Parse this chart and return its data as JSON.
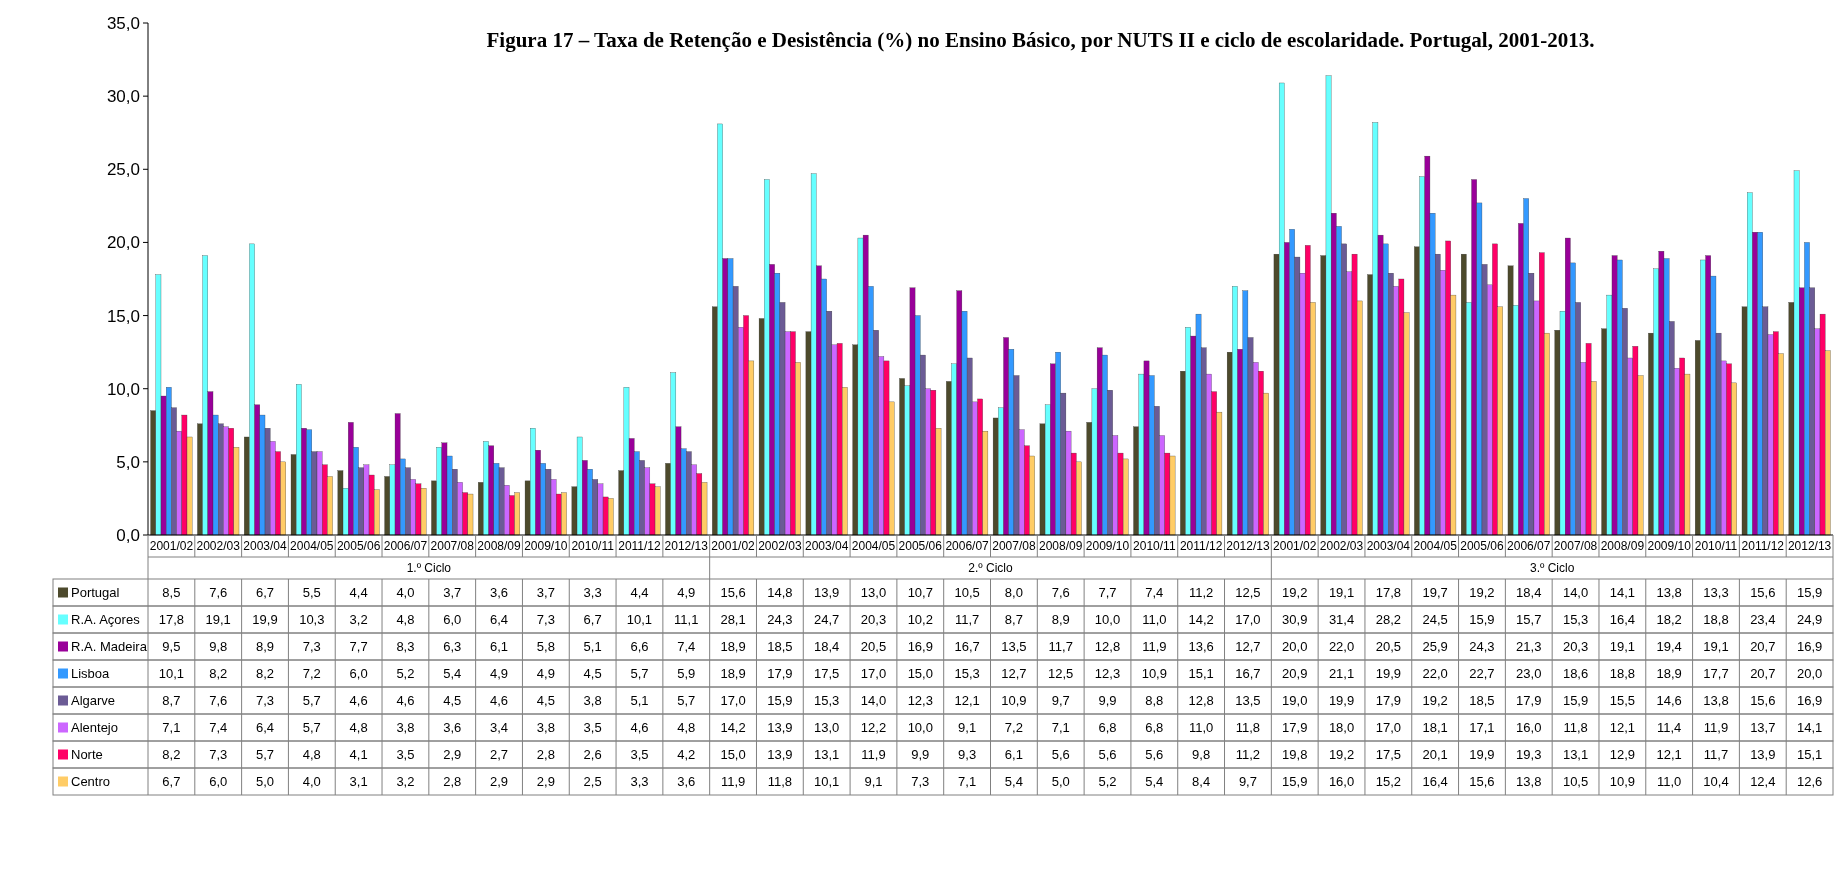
{
  "chart_data": {
    "type": "bar",
    "title": "Figura 17 – Taxa de Retenção e Desistência (%) no Ensino Básico, por NUTS II e ciclo de escolaridade. Portugal, 2001-2013.",
    "categories": [
      "2001/02",
      "2002/03",
      "2003/04",
      "2004/05",
      "2005/06",
      "2006/07",
      "2007/08",
      "2008/09",
      "2009/10",
      "2010/11",
      "2011/12",
      "2012/13",
      "2001/02",
      "2002/03",
      "2003/04",
      "2004/05",
      "2005/06",
      "2006/07",
      "2007/08",
      "2008/09",
      "2009/10",
      "2010/11",
      "2011/12",
      "2012/13",
      "2001/02",
      "2002/03",
      "2003/04",
      "2004/05",
      "2005/06",
      "2006/07",
      "2007/08",
      "2008/09",
      "2009/10",
      "2010/11",
      "2011/12",
      "2012/13"
    ],
    "annotations": [
      "1.º Ciclo",
      "2.º Ciclo",
      "3.º Ciclo"
    ],
    "series": [
      {
        "name": "Portugal",
        "color": "#4d4a2c",
        "values": [
          8.5,
          7.6,
          6.7,
          5.5,
          4.4,
          4.0,
          3.7,
          3.6,
          3.7,
          3.3,
          4.4,
          4.9,
          15.6,
          14.8,
          13.9,
          13.0,
          10.7,
          10.5,
          8.0,
          7.6,
          7.7,
          7.4,
          11.2,
          12.5,
          19.2,
          19.1,
          17.8,
          19.7,
          19.2,
          18.4,
          14.0,
          14.1,
          13.8,
          13.3,
          15.6,
          15.9
        ],
        "value_labels": [
          "8,5",
          "7,6",
          "6,7",
          "5,5",
          "4,4",
          "4,0",
          "3,7",
          "3,6",
          "3,7",
          "3,3",
          "4,4",
          "4,9",
          "15,6",
          "14,8",
          "13,9",
          "13,0",
          "10,7",
          "10,5",
          "8,0",
          "7,6",
          "7,7",
          "7,4",
          "11,2",
          "12,5",
          "19,2",
          "19,1",
          "17,8",
          "19,7",
          "19,2",
          "18,4",
          "14,0",
          "14,1",
          "13,8",
          "13,3",
          "15,6",
          "15,9"
        ]
      },
      {
        "name": "R.A. Açores",
        "color": "#66ffff",
        "values": [
          17.8,
          19.1,
          19.9,
          10.3,
          3.2,
          4.8,
          6.0,
          6.4,
          7.3,
          6.7,
          10.1,
          11.1,
          28.1,
          24.3,
          24.7,
          20.3,
          10.2,
          11.7,
          8.7,
          8.9,
          10.0,
          11.0,
          14.2,
          17.0,
          30.9,
          31.4,
          28.2,
          24.5,
          15.9,
          15.7,
          15.3,
          16.4,
          18.2,
          18.8,
          23.4,
          24.9
        ],
        "value_labels": [
          "17,8",
          "19,1",
          "19,9",
          "10,3",
          "3,2",
          "4,8",
          "6,0",
          "6,4",
          "7,3",
          "6,7",
          "10,1",
          "11,1",
          "28,1",
          "24,3",
          "24,7",
          "20,3",
          "10,2",
          "11,7",
          "8,7",
          "8,9",
          "10,0",
          "11,0",
          "14,2",
          "17,0",
          "30,9",
          "31,4",
          "28,2",
          "24,5",
          "15,9",
          "15,7",
          "15,3",
          "16,4",
          "18,2",
          "18,8",
          "23,4",
          "24,9"
        ]
      },
      {
        "name": "R.A. Madeira",
        "color": "#990099",
        "values": [
          9.5,
          9.8,
          8.9,
          7.3,
          7.7,
          8.3,
          6.3,
          6.1,
          5.8,
          5.1,
          6.6,
          7.4,
          18.9,
          18.5,
          18.4,
          20.5,
          16.9,
          16.7,
          13.5,
          11.7,
          12.8,
          11.9,
          13.6,
          12.7,
          20.0,
          22.0,
          20.5,
          25.9,
          24.3,
          21.3,
          20.3,
          19.1,
          19.4,
          19.1,
          20.7,
          16.9
        ],
        "value_labels": [
          "9,5",
          "9,8",
          "8,9",
          "7,3",
          "7,7",
          "8,3",
          "6,3",
          "6,1",
          "5,8",
          "5,1",
          "6,6",
          "7,4",
          "18,9",
          "18,5",
          "18,4",
          "20,5",
          "16,9",
          "16,7",
          "13,5",
          "11,7",
          "12,8",
          "11,9",
          "13,6",
          "12,7",
          "20,0",
          "22,0",
          "20,5",
          "25,9",
          "24,3",
          "21,3",
          "20,3",
          "19,1",
          "19,4",
          "19,1",
          "20,7",
          "16,9"
        ]
      },
      {
        "name": "Lisboa",
        "color": "#3399ff",
        "values": [
          10.1,
          8.2,
          8.2,
          7.2,
          6.0,
          5.2,
          5.4,
          4.9,
          4.9,
          4.5,
          5.7,
          5.9,
          18.9,
          17.9,
          17.5,
          17.0,
          15.0,
          15.3,
          12.7,
          12.5,
          12.3,
          10.9,
          15.1,
          16.7,
          20.9,
          21.1,
          19.9,
          22.0,
          22.7,
          23.0,
          18.6,
          18.8,
          18.9,
          17.7,
          20.7,
          20.0
        ],
        "value_labels": [
          "10,1",
          "8,2",
          "8,2",
          "7,2",
          "6,0",
          "5,2",
          "5,4",
          "4,9",
          "4,9",
          "4,5",
          "5,7",
          "5,9",
          "18,9",
          "17,9",
          "17,5",
          "17,0",
          "15,0",
          "15,3",
          "12,7",
          "12,5",
          "12,3",
          "10,9",
          "15,1",
          "16,7",
          "20,9",
          "21,1",
          "19,9",
          "22,0",
          "22,7",
          "23,0",
          "18,6",
          "18,8",
          "18,9",
          "17,7",
          "20,7",
          "20,0"
        ]
      },
      {
        "name": "Algarve",
        "color": "#6b5b95",
        "values": [
          8.7,
          7.6,
          7.3,
          5.7,
          4.6,
          4.6,
          4.5,
          4.6,
          4.5,
          3.8,
          5.1,
          5.7,
          17.0,
          15.9,
          15.3,
          14.0,
          12.3,
          12.1,
          10.9,
          9.7,
          9.9,
          8.8,
          12.8,
          13.5,
          19.0,
          19.9,
          17.9,
          19.2,
          18.5,
          17.9,
          15.9,
          15.5,
          14.6,
          13.8,
          15.6,
          16.9
        ],
        "value_labels": [
          "8,7",
          "7,6",
          "7,3",
          "5,7",
          "4,6",
          "4,6",
          "4,5",
          "4,6",
          "4,5",
          "3,8",
          "5,1",
          "5,7",
          "17,0",
          "15,9",
          "15,3",
          "14,0",
          "12,3",
          "12,1",
          "10,9",
          "9,7",
          "9,9",
          "8,8",
          "12,8",
          "13,5",
          "19,0",
          "19,9",
          "17,9",
          "19,2",
          "18,5",
          "17,9",
          "15,9",
          "15,5",
          "14,6",
          "13,8",
          "15,6",
          "16,9"
        ]
      },
      {
        "name": "Alentejo",
        "color": "#cc66ff",
        "values": [
          7.1,
          7.4,
          6.4,
          5.7,
          4.8,
          3.8,
          3.6,
          3.4,
          3.8,
          3.5,
          4.6,
          4.8,
          14.2,
          13.9,
          13.0,
          12.2,
          10.0,
          9.1,
          7.2,
          7.1,
          6.8,
          6.8,
          11.0,
          11.8,
          17.9,
          18.0,
          17.0,
          18.1,
          17.1,
          16.0,
          11.8,
          12.1,
          11.4,
          11.9,
          13.7,
          14.1
        ],
        "value_labels": [
          "7,1",
          "7,4",
          "6,4",
          "5,7",
          "4,8",
          "3,8",
          "3,6",
          "3,4",
          "3,8",
          "3,5",
          "4,6",
          "4,8",
          "14,2",
          "13,9",
          "13,0",
          "12,2",
          "10,0",
          "9,1",
          "7,2",
          "7,1",
          "6,8",
          "6,8",
          "11,0",
          "11,8",
          "17,9",
          "18,0",
          "17,0",
          "18,1",
          "17,1",
          "16,0",
          "11,8",
          "12,1",
          "11,4",
          "11,9",
          "13,7",
          "14,1"
        ]
      },
      {
        "name": "Norte",
        "color": "#ff0066",
        "values": [
          8.2,
          7.3,
          5.7,
          4.8,
          4.1,
          3.5,
          2.9,
          2.7,
          2.8,
          2.6,
          3.5,
          4.2,
          15.0,
          13.9,
          13.1,
          11.9,
          9.9,
          9.3,
          6.1,
          5.6,
          5.6,
          5.6,
          9.8,
          11.2,
          19.8,
          19.2,
          17.5,
          20.1,
          19.9,
          19.3,
          13.1,
          12.9,
          12.1,
          11.7,
          13.9,
          15.1
        ],
        "value_labels": [
          "8,2",
          "7,3",
          "5,7",
          "4,8",
          "4,1",
          "3,5",
          "2,9",
          "2,7",
          "2,8",
          "2,6",
          "3,5",
          "4,2",
          "15,0",
          "13,9",
          "13,1",
          "11,9",
          "9,9",
          "9,3",
          "6,1",
          "5,6",
          "5,6",
          "5,6",
          "9,8",
          "11,2",
          "19,8",
          "19,2",
          "17,5",
          "20,1",
          "19,9",
          "19,3",
          "13,1",
          "12,9",
          "12,1",
          "11,7",
          "13,9",
          "15,1"
        ]
      },
      {
        "name": "Centro",
        "color": "#ffcc66",
        "values": [
          6.7,
          6.0,
          5.0,
          4.0,
          3.1,
          3.2,
          2.8,
          2.9,
          2.9,
          2.5,
          3.3,
          3.6,
          11.9,
          11.8,
          10.1,
          9.1,
          7.3,
          7.1,
          5.4,
          5.0,
          5.2,
          5.4,
          8.4,
          9.7,
          15.9,
          16.0,
          15.2,
          16.4,
          15.6,
          13.8,
          10.5,
          10.9,
          11.0,
          10.4,
          12.4,
          12.6
        ],
        "value_labels": [
          "6,7",
          "6,0",
          "5,0",
          "4,0",
          "3,1",
          "3,2",
          "2,8",
          "2,9",
          "2,9",
          "2,5",
          "3,3",
          "3,6",
          "11,9",
          "11,8",
          "10,1",
          "9,1",
          "7,3",
          "7,1",
          "5,4",
          "5,0",
          "5,2",
          "5,4",
          "8,4",
          "9,7",
          "15,9",
          "16,0",
          "15,2",
          "16,4",
          "15,6",
          "13,8",
          "10,5",
          "10,9",
          "11,0",
          "10,4",
          "12,4",
          "12,6"
        ]
      }
    ],
    "ylim": [
      0,
      35
    ],
    "yticks": [
      {
        "value": 0,
        "label": "0,0"
      },
      {
        "value": 5,
        "label": "5,0"
      },
      {
        "value": 10,
        "label": "10,0"
      },
      {
        "value": 15,
        "label": "15,0"
      },
      {
        "value": 20,
        "label": "20,0"
      },
      {
        "value": 25,
        "label": "25,0"
      },
      {
        "value": 30,
        "label": "30,0"
      },
      {
        "value": 35,
        "label": "35,0"
      }
    ],
    "legend": "bottom left"
  }
}
